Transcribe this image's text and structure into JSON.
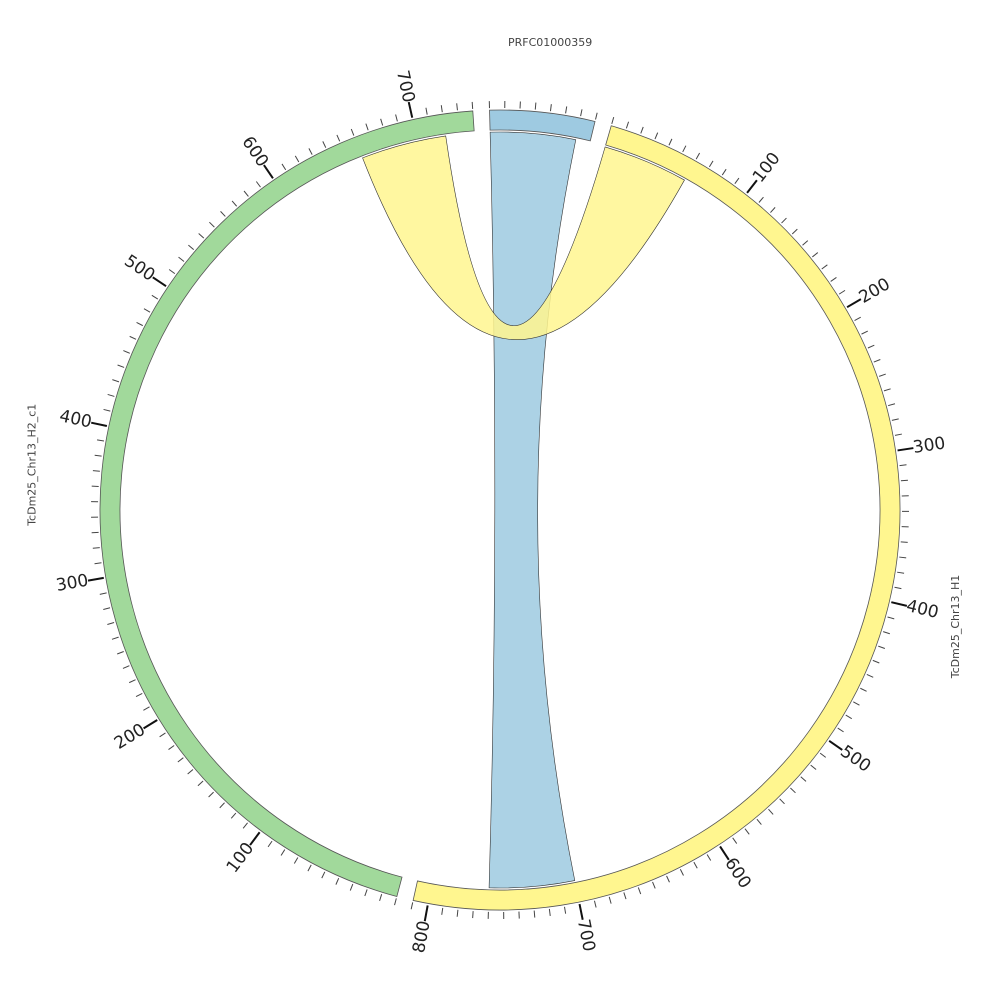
{
  "chart_data": {
    "type": "chord",
    "segments": [
      {
        "name": "PRFC01000359",
        "length": 70,
        "color": "#9ecae1"
      },
      {
        "name": "TcDm25_Chr13_H1",
        "length": 810,
        "color": "#fff68f"
      },
      {
        "name": "TcDm25_Chr13_H2_c1",
        "length": 740,
        "color": "#a1d99b"
      }
    ],
    "tick_labels": {
      "TcDm25_Chr13_H1": [
        100,
        200,
        300,
        400,
        500,
        600,
        700,
        800
      ],
      "TcDm25_Chr13_H2_c1": [
        100,
        200,
        300,
        400,
        500,
        600,
        700
      ]
    },
    "links": [
      {
        "source": "PRFC01000359",
        "source_range": [
          0,
          60
        ],
        "target": "TcDm25_Chr13_H1",
        "target_range": [
          700,
          760
        ],
        "color": "#9ecae1"
      },
      {
        "source": "TcDm25_Chr13_H1",
        "source_range": [
          0,
          60
        ],
        "target": "TcDm25_Chr13_H2_c1",
        "target_range": [
          660,
          720
        ],
        "color": "#fff68f"
      }
    ]
  }
}
